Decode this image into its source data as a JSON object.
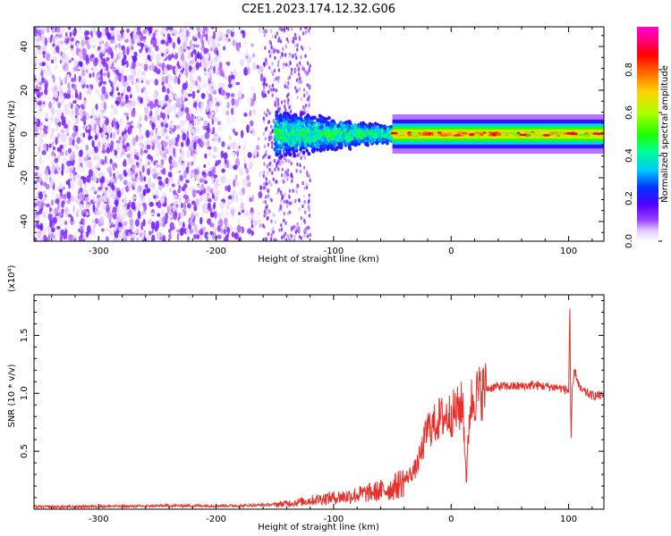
{
  "title": "C2E1.2023.174.12.32.G06",
  "colors": {
    "snr_line": "#e8302a",
    "frame": "#000000",
    "spectral_fill": "#6a00ff"
  },
  "chart_data": [
    {
      "type": "heatmap",
      "xlabel": "Height of straight line (km)",
      "ylabel": "Frequency (Hz)",
      "xlim": [
        -355,
        130
      ],
      "ylim": [
        -49,
        49
      ],
      "x_ticks": [
        -300,
        -200,
        -100,
        0,
        100
      ],
      "y_ticks": [
        -40,
        -20,
        0,
        20,
        40
      ],
      "colorbar": {
        "label": "Normalized spectral amplitude",
        "range": [
          0.0,
          1.0
        ],
        "ticks": [
          "0.0",
          "0.2",
          "0.4",
          "0.6",
          "0.8"
        ],
        "tick_values": [
          0.0,
          0.2,
          0.4,
          0.6,
          0.8
        ],
        "colormap": "rainbow (white, violet, blue, cyan, green, yellow, orange, red, magenta)"
      },
      "description_regions": [
        {
          "x_range": [
            -355,
            -150
          ],
          "y_range": [
            -49,
            49
          ],
          "amplitude": 0.1,
          "pattern": "scattered noise"
        },
        {
          "x_range": [
            -150,
            -50
          ],
          "y_center": 0,
          "y_halfwidth": [
            12,
            4
          ],
          "amplitude": 0.35
        },
        {
          "x_range": [
            -50,
            130
          ],
          "y_center": 0,
          "y_halfwidth": [
            3,
            3
          ],
          "amplitude": 0.85
        }
      ]
    },
    {
      "type": "line",
      "xlabel": "Height of straight line (km)",
      "ylabel": "SNR (10 * v/v)",
      "y_multiplier": "(x10⁴)",
      "xlim": [
        -355,
        130
      ],
      "ylim": [
        0,
        1.85
      ],
      "x_ticks": [
        -300,
        -200,
        -100,
        0,
        100
      ],
      "y_ticks": [
        0.5,
        1.0,
        1.5
      ],
      "y_tick_labels": [
        "0.5",
        "1.0",
        "1.5"
      ],
      "series": [
        {
          "x": [
            -355,
            -330,
            -300,
            -270,
            -240,
            -210,
            -180,
            -150,
            -130,
            -110,
            -90,
            -70,
            -50,
            -40,
            -30,
            -25,
            -20,
            -15,
            -10,
            -5,
            0,
            5,
            10,
            13,
            16,
            20,
            30,
            40,
            50,
            60,
            70,
            80,
            90,
            95,
            100,
            101,
            102,
            103,
            105,
            110,
            120,
            130
          ],
          "y": [
            0.02,
            0.02,
            0.025,
            0.025,
            0.03,
            0.03,
            0.03,
            0.04,
            0.06,
            0.09,
            0.11,
            0.14,
            0.18,
            0.25,
            0.35,
            0.5,
            0.7,
            0.72,
            0.78,
            0.8,
            0.82,
            0.85,
            0.9,
            0.25,
            0.9,
            0.98,
            1.04,
            1.06,
            1.06,
            1.06,
            1.07,
            1.06,
            1.05,
            1.04,
            1.02,
            1.8,
            0.55,
            1.0,
            1.2,
            1.03,
            0.98,
            0.98
          ]
        }
      ]
    }
  ]
}
